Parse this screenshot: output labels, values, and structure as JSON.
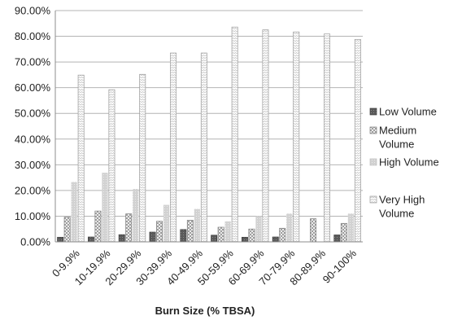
{
  "chart_data": {
    "type": "bar",
    "title": "",
    "xlabel": "Burn Size (% TBSA)",
    "ylabel": "",
    "ylim": [
      0,
      90
    ],
    "ytick_values": [
      0,
      10,
      20,
      30,
      40,
      50,
      60,
      70,
      80,
      90
    ],
    "ytick_labels": [
      "0.00%",
      "10.00%",
      "20.00%",
      "30.00%",
      "40.00%",
      "50.00%",
      "60.00%",
      "70.00%",
      "80.00%",
      "90.00%"
    ],
    "grid": true,
    "legend_position": "right",
    "categories": [
      "0-9.9%",
      "10-19.9%",
      "20-29.9%",
      "30-39.9%",
      "40-49.9%",
      "50-59.9%",
      "60-69.9%",
      "70-79.9%",
      "80-89.9%",
      "90-100%"
    ],
    "series": [
      {
        "name": "Low Volume",
        "legend_lines": [
          "Low Volume"
        ],
        "pattern": "dark",
        "values": [
          1.8,
          1.9,
          2.8,
          3.8,
          4.8,
          2.6,
          1.8,
          1.9,
          0,
          2.7
        ]
      },
      {
        "name": "Medium Volume",
        "legend_lines": [
          "Medium",
          "Volume"
        ],
        "pattern": "check",
        "values": [
          9.6,
          12.0,
          10.9,
          8.0,
          8.4,
          5.7,
          5.0,
          5.3,
          9.0,
          7.2
        ]
      },
      {
        "name": "High Volume",
        "legend_lines": [
          "High Volume"
        ],
        "pattern": "light",
        "values": [
          23.3,
          26.9,
          20.6,
          14.4,
          12.8,
          8.0,
          10.0,
          11.0,
          0,
          11.0
        ]
      },
      {
        "name": "Very High Volume",
        "legend_lines": [
          "Very High",
          "Volume"
        ],
        "pattern": "zigzag",
        "values": [
          64.9,
          59.2,
          65.2,
          73.5,
          73.5,
          83.6,
          82.5,
          81.7,
          80.9,
          78.8
        ]
      }
    ]
  }
}
